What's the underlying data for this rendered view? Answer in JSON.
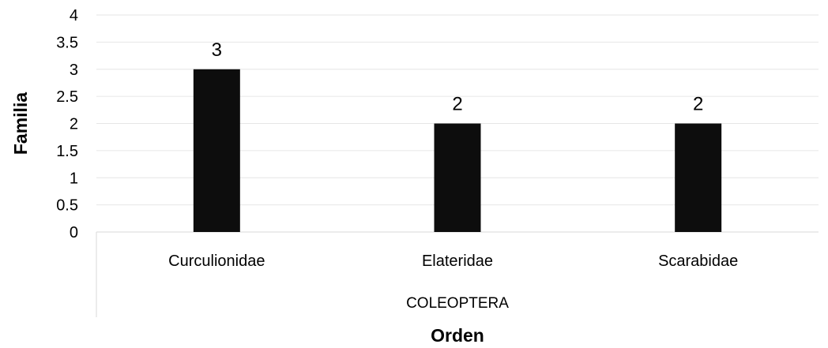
{
  "chart_data": {
    "type": "bar",
    "categories": [
      "Curculionidae",
      "Elateridae",
      "Scarabidae"
    ],
    "group_label": "COLEOPTERA",
    "values": [
      3,
      2,
      2
    ],
    "data_labels": [
      "3",
      "2",
      "2"
    ],
    "yticks": [
      "0",
      "0.5",
      "1",
      "1.5",
      "2",
      "2.5",
      "3",
      "3.5",
      "4"
    ],
    "ylim": [
      0,
      4
    ],
    "ytick_step": 0.5,
    "title": "",
    "xlabel": "Orden",
    "ylabel": "Familia",
    "grid": true,
    "legend": "none",
    "colors": {
      "bar": "#0d0d0d",
      "grid": "#e6e6e6",
      "axis": "#d9d9d9"
    }
  }
}
